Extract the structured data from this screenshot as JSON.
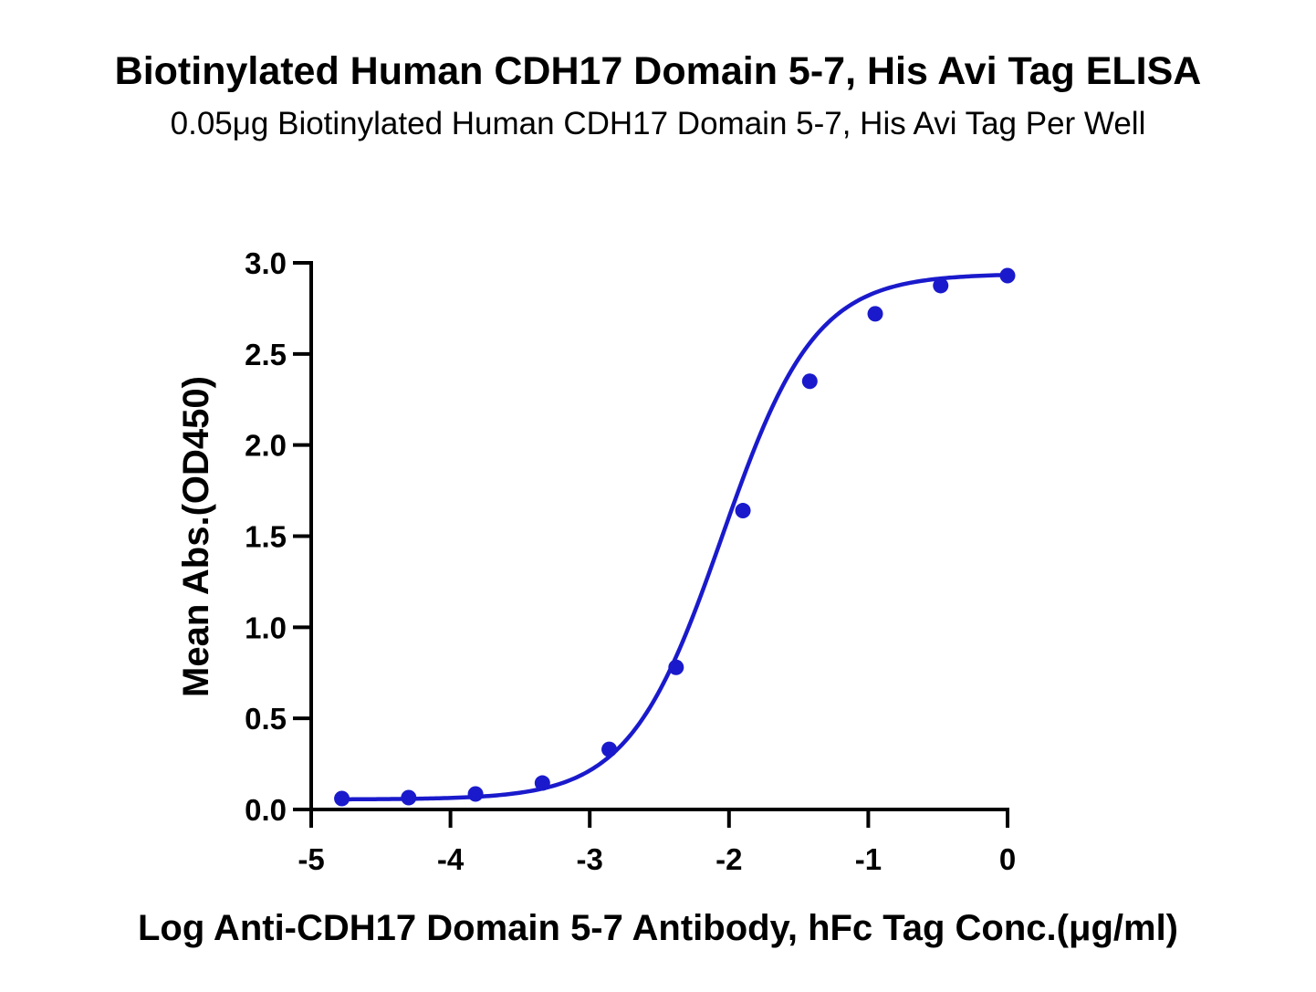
{
  "chart_data": {
    "type": "line",
    "title": "Biotinylated Human CDH17 Domain 5-7, His Avi Tag ELISA",
    "subtitle": "0.05μg Biotinylated Human CDH17 Domain 5-7, His Avi Tag Per Well",
    "xlabel": "Log Anti-CDH17 Domain 5-7 Antibody, hFc Tag Conc.(μg/ml)",
    "ylabel": "Mean Abs.(OD450)",
    "xlim": [
      -5,
      0
    ],
    "ylim": [
      0,
      3.0
    ],
    "xticks": [
      -5,
      -4,
      -3,
      -2,
      -1,
      0
    ],
    "xtick_labels": [
      "-5",
      "-4",
      "-3",
      "-2",
      "-1",
      "0"
    ],
    "yticks": [
      0,
      0.5,
      1.0,
      1.5,
      2.0,
      2.5,
      3.0
    ],
    "ytick_labels": [
      "0.0",
      "0.5",
      "1.0",
      "1.5",
      "2.0",
      "2.5",
      "3.0"
    ],
    "grid": false,
    "legend": "none",
    "color": "#1a1acc",
    "series": [
      {
        "x": [
          -4.78,
          -4.3,
          -3.82,
          -3.34,
          -2.86,
          -2.38,
          -1.9,
          -1.42,
          -0.95,
          -0.48,
          0.0
        ],
        "y": [
          0.06,
          0.065,
          0.085,
          0.145,
          0.33,
          0.78,
          1.64,
          2.35,
          2.72,
          2.875,
          2.93
        ],
        "fit": "four-parameter-logistic"
      }
    ]
  }
}
